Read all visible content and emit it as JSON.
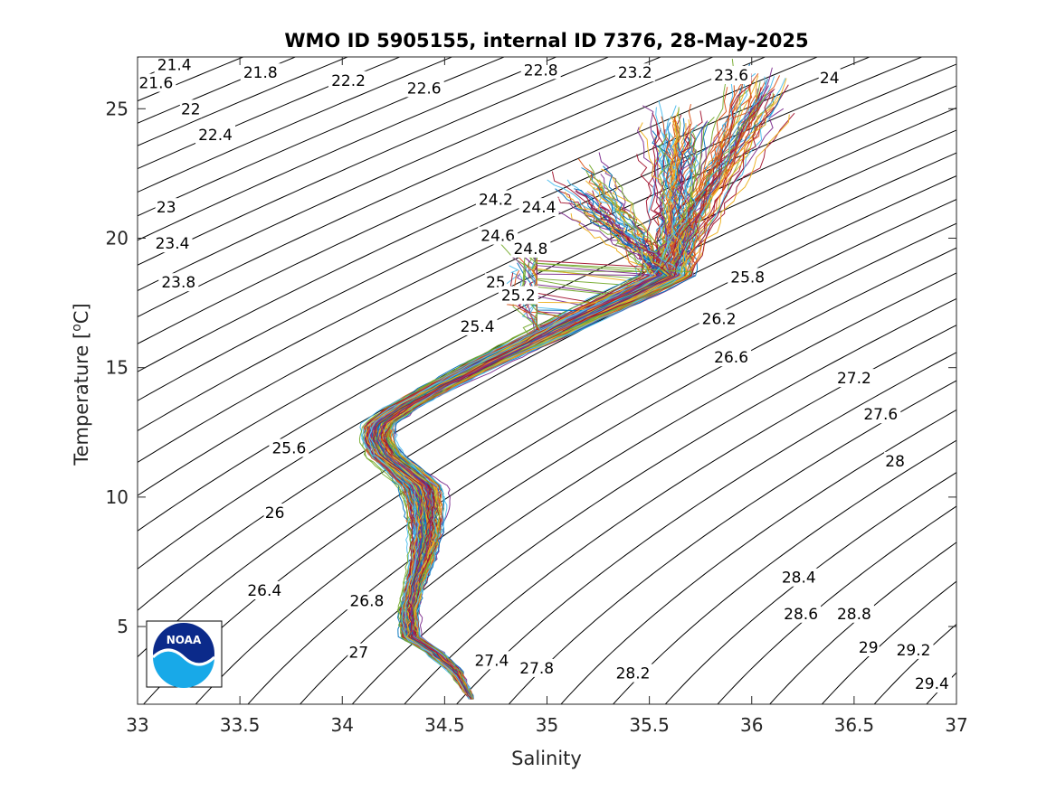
{
  "chart_data": {
    "type": "line",
    "title": "WMO ID 5905155, internal ID 7376, 28-May-2025",
    "xlabel": "Salinity",
    "ylabel": "Temperature [°C]",
    "ylabel_parts": {
      "text": "Temperature [",
      "sup": "o",
      "unit": "C]"
    },
    "xlim": [
      33,
      37
    ],
    "ylim": [
      2,
      27
    ],
    "xticks": [
      "33",
      "33.5",
      "34",
      "34.5",
      "35",
      "35.5",
      "36",
      "36.5",
      "37"
    ],
    "yticks": [
      "5",
      "10",
      "15",
      "20",
      "25"
    ],
    "grid": false,
    "legend": "none",
    "isopycnal_labels": [
      {
        "text": "21.4",
        "s": 33.18,
        "t": 26.7
      },
      {
        "text": "21.6",
        "s": 33.09,
        "t": 26.0
      },
      {
        "text": "21.8",
        "s": 33.6,
        "t": 26.4
      },
      {
        "text": "22",
        "s": 33.26,
        "t": 25.0
      },
      {
        "text": "22.2",
        "s": 34.03,
        "t": 26.1
      },
      {
        "text": "22.4",
        "s": 33.38,
        "t": 24.0
      },
      {
        "text": "22.6",
        "s": 34.4,
        "t": 25.8
      },
      {
        "text": "22.8",
        "s": 34.97,
        "t": 26.5
      },
      {
        "text": "23",
        "s": 33.14,
        "t": 21.2
      },
      {
        "text": "23.2",
        "s": 35.43,
        "t": 26.4
      },
      {
        "text": "23.4",
        "s": 33.17,
        "t": 19.8
      },
      {
        "text": "23.6",
        "s": 35.9,
        "t": 26.3
      },
      {
        "text": "23.8",
        "s": 33.2,
        "t": 18.3
      },
      {
        "text": "24",
        "s": 36.38,
        "t": 26.2
      },
      {
        "text": "24.2",
        "s": 34.75,
        "t": 21.5
      },
      {
        "text": "24.4",
        "s": 34.96,
        "t": 21.2
      },
      {
        "text": "24.6",
        "s": 34.76,
        "t": 20.1
      },
      {
        "text": "24.8",
        "s": 34.92,
        "t": 19.6
      },
      {
        "text": "25",
        "s": 34.75,
        "t": 18.3
      },
      {
        "text": "25.2",
        "s": 34.86,
        "t": 17.8
      },
      {
        "text": "25.4",
        "s": 34.66,
        "t": 16.6
      },
      {
        "text": "25.6",
        "s": 33.74,
        "t": 11.9
      },
      {
        "text": "25.8",
        "s": 35.98,
        "t": 18.5
      },
      {
        "text": "26",
        "s": 33.67,
        "t": 9.4
      },
      {
        "text": "26.2",
        "s": 35.84,
        "t": 16.9
      },
      {
        "text": "26.4",
        "s": 33.62,
        "t": 6.4
      },
      {
        "text": "26.6",
        "s": 35.9,
        "t": 15.4
      },
      {
        "text": "26.8",
        "s": 34.12,
        "t": 6.0
      },
      {
        "text": "27",
        "s": 34.08,
        "t": 4.0
      },
      {
        "text": "27.2",
        "s": 36.5,
        "t": 14.6
      },
      {
        "text": "27.4",
        "s": 34.73,
        "t": 3.7
      },
      {
        "text": "27.6",
        "s": 36.63,
        "t": 13.2
      },
      {
        "text": "27.8",
        "s": 34.95,
        "t": 3.4
      },
      {
        "text": "28",
        "s": 36.7,
        "t": 11.4
      },
      {
        "text": "28.2",
        "s": 35.42,
        "t": 3.2
      },
      {
        "text": "28.4",
        "s": 36.23,
        "t": 6.9
      },
      {
        "text": "28.6",
        "s": 36.24,
        "t": 5.5
      },
      {
        "text": "28.8",
        "s": 36.5,
        "t": 5.5
      },
      {
        "text": "29",
        "s": 36.57,
        "t": 4.2
      },
      {
        "text": "29.2",
        "s": 36.79,
        "t": 4.1
      },
      {
        "text": "29.4",
        "s": 36.88,
        "t": 2.8
      }
    ],
    "series_colors": [
      "#0072BD",
      "#D95319",
      "#EDB120",
      "#7E2F8E",
      "#77AC30",
      "#4DBEEE",
      "#A2142F"
    ],
    "profile_count": 210,
    "mean_profile": [
      {
        "s": 34.63,
        "t": 2.2
      },
      {
        "s": 34.55,
        "t": 3.3
      },
      {
        "s": 34.45,
        "t": 4.0
      },
      {
        "s": 34.33,
        "t": 4.6
      },
      {
        "s": 34.32,
        "t": 5.6
      },
      {
        "s": 34.35,
        "t": 6.6
      },
      {
        "s": 34.39,
        "t": 7.6
      },
      {
        "s": 34.41,
        "t": 8.6
      },
      {
        "s": 34.4,
        "t": 9.6
      },
      {
        "s": 34.38,
        "t": 10.4
      },
      {
        "s": 34.3,
        "t": 11.0
      },
      {
        "s": 34.21,
        "t": 11.6
      },
      {
        "s": 34.17,
        "t": 12.2
      },
      {
        "s": 34.18,
        "t": 12.8
      },
      {
        "s": 34.3,
        "t": 13.5
      },
      {
        "s": 34.48,
        "t": 14.3
      },
      {
        "s": 34.7,
        "t": 15.2
      },
      {
        "s": 34.92,
        "t": 16.0
      },
      {
        "s": 35.15,
        "t": 16.9
      },
      {
        "s": 35.4,
        "t": 17.8
      },
      {
        "s": 35.6,
        "t": 18.6
      }
    ],
    "envelope_halfwidth": [
      {
        "t": 2.2,
        "w": 0.01
      },
      {
        "t": 3.3,
        "w": 0.04
      },
      {
        "t": 4.6,
        "w": 0.06
      },
      {
        "t": 6.6,
        "w": 0.06
      },
      {
        "t": 8.6,
        "w": 0.1
      },
      {
        "t": 10.4,
        "w": 0.14
      },
      {
        "t": 12.2,
        "w": 0.1
      },
      {
        "t": 14.3,
        "w": 0.1
      },
      {
        "t": 16.0,
        "w": 0.14
      },
      {
        "t": 18.6,
        "w": 0.18
      }
    ],
    "upper_branches": [
      {
        "start": {
          "s": 35.2,
          "t": 17.5
        },
        "end": {
          "s": 35.65,
          "t": 24.2
        }
      },
      {
        "start": {
          "s": 35.55,
          "t": 18.5
        },
        "end": {
          "s": 36.05,
          "t": 25.8
        }
      },
      {
        "start": {
          "s": 34.95,
          "t": 16.8
        },
        "end": {
          "s": 35.2,
          "t": 22.0
        }
      }
    ],
    "scattered_surface": {
      "s_range": [
        34.05,
        34.95
      ],
      "t_range": [
        14.0,
        19.8
      ]
    }
  },
  "logo": {
    "text": "NOAA",
    "icon": "noaa-logo-icon"
  }
}
